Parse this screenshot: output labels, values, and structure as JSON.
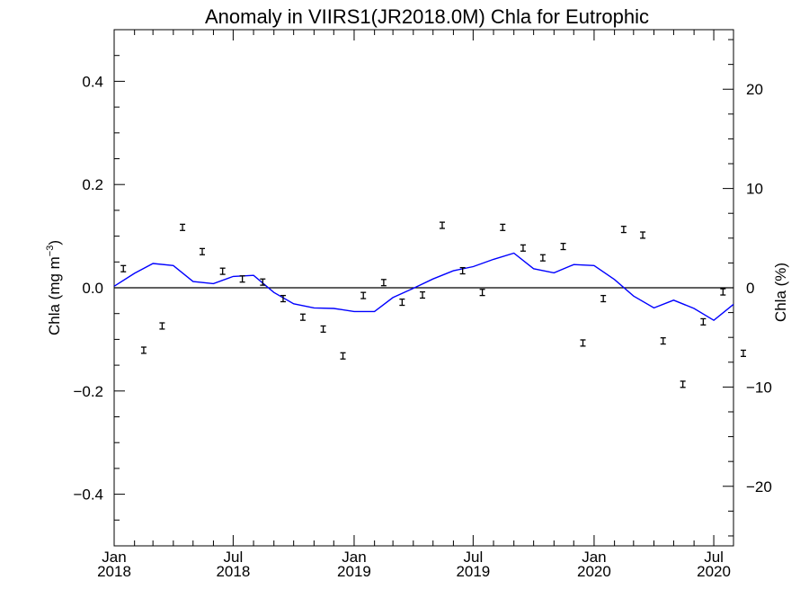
{
  "chart_data": {
    "type": "line",
    "title": "Anomaly in VIIRS1(JR2018.0M) Chla for Eutrophic",
    "ylabel_left": {
      "base": "Chla (mg m",
      "sup": "−3",
      "close": ")"
    },
    "ylabel_right": "Chla (%)",
    "xlabel": "",
    "xlim": [
      "2018-01-01",
      "2020-07-31"
    ],
    "ylim_left": [
      -0.5,
      0.5
    ],
    "ylim_right": [
      -26,
      26
    ],
    "yticks_left": [
      {
        "value": 0.4,
        "label": "0.4"
      },
      {
        "value": 0.2,
        "label": "0.2"
      },
      {
        "value": 0.0,
        "label": "0.0"
      },
      {
        "value": -0.2,
        "label": "−0.2"
      },
      {
        "value": -0.4,
        "label": "−0.4"
      }
    ],
    "yticks_right": [
      {
        "value": 20,
        "label": "20"
      },
      {
        "value": 10,
        "label": "10"
      },
      {
        "value": 0,
        "label": "0"
      },
      {
        "value": -10,
        "label": "−10"
      },
      {
        "value": -20,
        "label": "−20"
      }
    ],
    "xticks": [
      {
        "value": "2018-01-01",
        "month": "Jan",
        "year": "2018"
      },
      {
        "value": "2018-07-01",
        "month": "Jul",
        "year": "2018"
      },
      {
        "value": "2019-01-01",
        "month": "Jan",
        "year": "2019"
      },
      {
        "value": "2019-07-01",
        "month": "Jul",
        "year": "2019"
      },
      {
        "value": "2020-01-01",
        "month": "Jan",
        "year": "2020"
      },
      {
        "value": "2020-07-01",
        "month": "Jul",
        "year": "2020"
      }
    ],
    "zero_line": true,
    "grid": false,
    "colors": {
      "line": "#0000ff",
      "points": "#000000",
      "axes": "#000000"
    },
    "series": [
      {
        "type": "errorbar",
        "x": [
          "2018-01-15",
          "2018-02-15",
          "2018-03-15",
          "2018-04-15",
          "2018-05-15",
          "2018-06-15",
          "2018-07-15",
          "2018-08-15",
          "2018-09-15",
          "2018-10-15",
          "2018-11-15",
          "2018-12-15",
          "2019-01-15",
          "2019-02-15",
          "2019-03-15",
          "2019-04-15",
          "2019-05-15",
          "2019-06-15",
          "2019-07-15",
          "2019-08-15",
          "2019-09-15",
          "2019-10-15",
          "2019-11-15",
          "2019-12-15",
          "2020-01-15",
          "2020-02-15",
          "2020-03-15",
          "2020-04-15",
          "2020-05-15",
          "2020-06-15",
          "2020-07-15",
          "2020-08-15"
        ],
        "values": [
          0.037,
          -0.121,
          -0.074,
          0.117,
          0.07,
          0.032,
          0.017,
          0.011,
          -0.021,
          -0.057,
          -0.08,
          -0.132,
          -0.015,
          0.01,
          -0.028,
          -0.014,
          0.121,
          0.033,
          -0.009,
          0.117,
          0.077,
          0.058,
          0.08,
          -0.107,
          -0.021,
          0.113,
          0.102,
          -0.103,
          -0.187,
          -0.066,
          -0.008,
          -0.127
        ],
        "error": 0.006
      },
      {
        "type": "line",
        "x": [
          "2018-01-01",
          "2018-02-01",
          "2018-03-01",
          "2018-04-01",
          "2018-05-01",
          "2018-06-01",
          "2018-07-01",
          "2018-08-01",
          "2018-09-01",
          "2018-10-01",
          "2018-11-01",
          "2018-12-01",
          "2019-01-01",
          "2019-02-01",
          "2019-03-01",
          "2019-04-01",
          "2019-05-01",
          "2019-06-01",
          "2019-07-01",
          "2019-08-01",
          "2019-09-01",
          "2019-10-01",
          "2019-11-01",
          "2019-12-01",
          "2020-01-01",
          "2020-02-01",
          "2020-03-01",
          "2020-04-01",
          "2020-05-01",
          "2020-06-01",
          "2020-07-01",
          "2020-07-31"
        ],
        "values": [
          0.003,
          0.028,
          0.047,
          0.043,
          0.012,
          0.008,
          0.022,
          0.024,
          -0.009,
          -0.031,
          -0.039,
          -0.04,
          -0.046,
          -0.046,
          -0.019,
          -0.001,
          0.017,
          0.033,
          0.041,
          0.055,
          0.067,
          0.037,
          0.029,
          0.045,
          0.043,
          0.016,
          -0.016,
          -0.039,
          -0.024,
          -0.04,
          -0.063,
          -0.032
        ]
      }
    ]
  }
}
